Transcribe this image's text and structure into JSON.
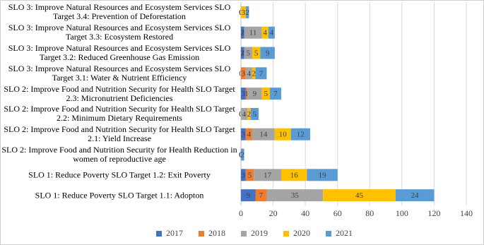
{
  "chart_data": {
    "type": "stacked-bar-horizontal",
    "categories": [
      "SLO 3: Improve Natural Resources and Ecosystem Services SLO Target 3.4: Prevention of Deforestation",
      "SLO 3: Improve Natural Resources and Ecosystem Services SLO Target 3.3: Ecosystem Restored",
      "SLO 3: Improve Natural Resources and Ecosystem Services SLO Target 3.2: Reduced Greenhouse Gas Emission",
      "SLO 3: Improve Natural Resources and Ecosystem Services SLO Target 3.1: Water & Nutrient Efficiency",
      "SLO 2: Improve Food and Nutrition Security for Health SLO Target 2.3: Micronutrient Deficiencies",
      "SLO 2: Improve Food and Nutrition Security for Health SLO Target 2.2: Minimum Dietary Requirements",
      "SLO 2: Improve Food and Nutrition Security for Health SLO Target 2.1: Yield Increase",
      "SLO 2: Improve Food and Nutrition Security for Health Reduction in women of reproductive age",
      "SLO 1: Reduce Poverty SLO Target 1.2: Exit Poverty",
      "SLO 1: Reduce Poverty SLO Target 1.1: Adopton"
    ],
    "series": [
      {
        "name": "2017",
        "color": "#4472c4",
        "values": [
          0,
          2,
          2,
          0,
          3,
          0,
          3,
          0,
          3,
          9
        ]
      },
      {
        "name": "2018",
        "color": "#ed7d31",
        "values": [
          0,
          0,
          0,
          3,
          1,
          0,
          4,
          0,
          5,
          7
        ]
      },
      {
        "name": "2019",
        "color": "#a5a5a5",
        "values": [
          0,
          11,
          5,
          4,
          9,
          4,
          14,
          0,
          17,
          35
        ]
      },
      {
        "name": "2020",
        "color": "#ffc000",
        "values": [
          3,
          4,
          5,
          2,
          5,
          2,
          10,
          0,
          16,
          45
        ]
      },
      {
        "name": "2021",
        "color": "#5b9bd5",
        "values": [
          2,
          4,
          9,
          7,
          7,
          5,
          12,
          2,
          19,
          24
        ]
      }
    ],
    "xlim": [
      0,
      140
    ],
    "xticks": [
      0,
      20,
      40,
      60,
      80,
      100,
      120,
      140
    ],
    "grid": true,
    "legend": "bottom"
  }
}
